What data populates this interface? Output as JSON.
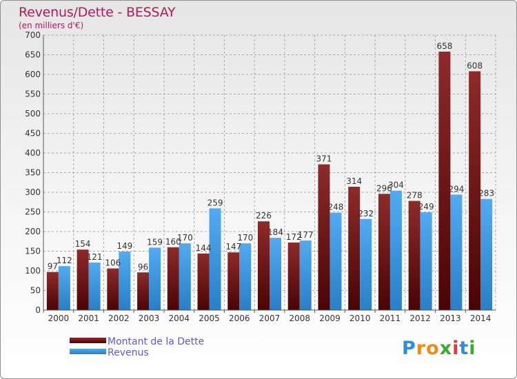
{
  "header": {
    "title": "Revenus/Dette - BESSAY",
    "subtitle": "(en milliers d'€)"
  },
  "legend": {
    "debt_label": "Montant de la Dette",
    "revenue_label": "Revenus"
  },
  "logo": {
    "letters": [
      "P",
      "r",
      "o",
      "x",
      "i",
      "t",
      "i"
    ],
    "colors": [
      "#2f8fd6",
      "#f08a1c",
      "#f08a1c",
      "#3aaa35",
      "#e03a3e",
      "#2f8fd6",
      "#3aaa35"
    ]
  },
  "colors": {
    "debt": "#7a1a1a",
    "revenue": "#3a95dc",
    "title": "#b2195a",
    "legend_text": "#5a5ae0"
  },
  "chart_data": {
    "type": "bar",
    "title": "Revenus/Dette - BESSAY",
    "subtitle": "(en milliers d'€)",
    "categories": [
      "2000",
      "2001",
      "2002",
      "2003",
      "2004",
      "2005",
      "2006",
      "2007",
      "2008",
      "2009",
      "2010",
      "2011",
      "2012",
      "2013",
      "2014"
    ],
    "series": [
      {
        "name": "Montant de la Dette",
        "values": [
          97,
          154,
          106,
          96,
          160,
          144,
          147,
          226,
          172,
          371,
          314,
          296,
          278,
          658,
          608
        ]
      },
      {
        "name": "Revenus",
        "values": [
          112,
          121,
          149,
          159,
          170,
          259,
          170,
          184,
          177,
          248,
          232,
          304,
          249,
          294,
          283
        ]
      }
    ],
    "yticks": [
      0,
      50,
      100,
      150,
      200,
      250,
      300,
      350,
      400,
      450,
      500,
      550,
      600,
      650,
      700
    ],
    "ylim": [
      0,
      700
    ],
    "grid": true,
    "legend_position": "bottom-left",
    "data_labels": true
  }
}
